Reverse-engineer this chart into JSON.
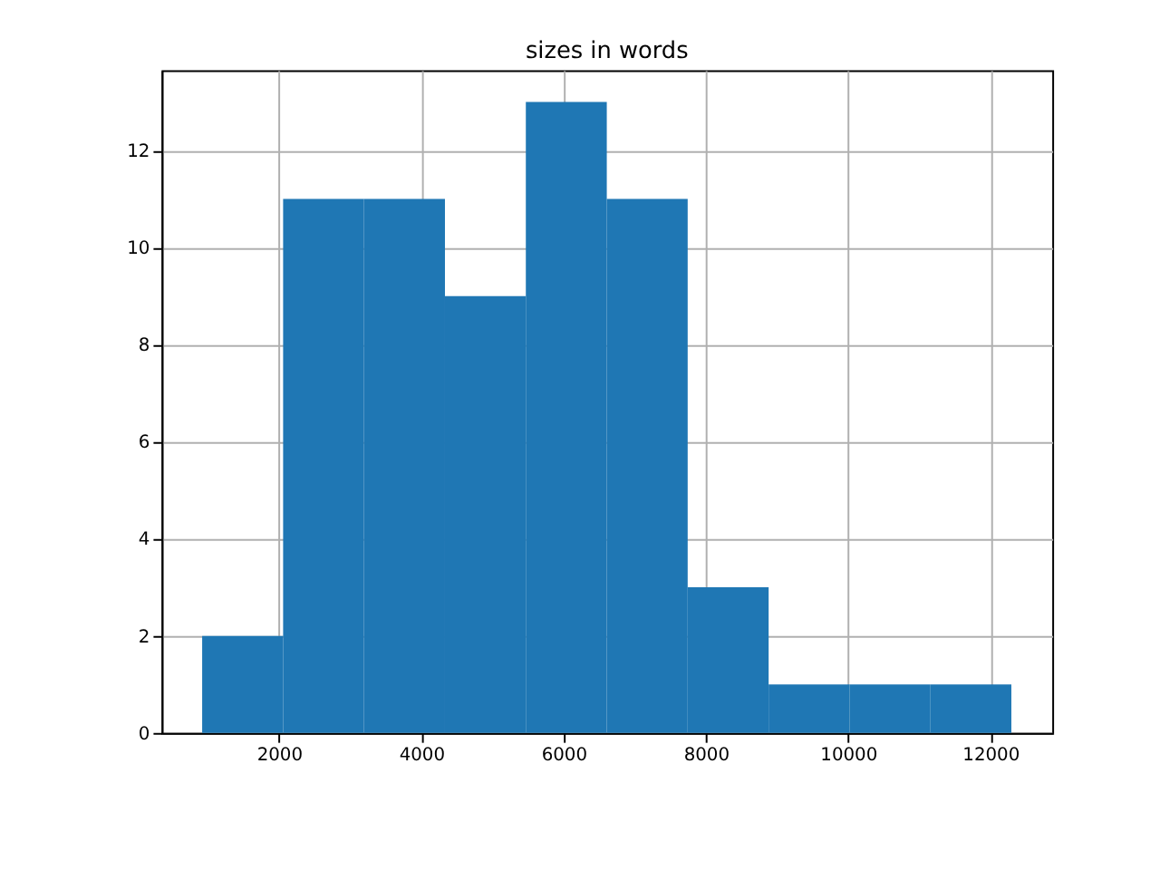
{
  "chart_data": {
    "type": "histogram",
    "title": "sizes in words",
    "bins": [
      920,
      2058,
      3195,
      4333,
      5470,
      6608,
      7745,
      8883,
      10020,
      11158,
      12295
    ],
    "values": [
      2,
      11,
      11,
      9,
      13,
      11,
      3,
      1,
      1,
      1
    ],
    "color": "#1f77b4",
    "xlim": [
      350,
      12870
    ],
    "xticks": [
      2000,
      4000,
      6000,
      8000,
      10000,
      12000
    ],
    "ylim": [
      0,
      13.65
    ],
    "yticks": [
      0,
      2,
      4,
      6,
      8,
      10,
      12
    ],
    "grid": true
  }
}
